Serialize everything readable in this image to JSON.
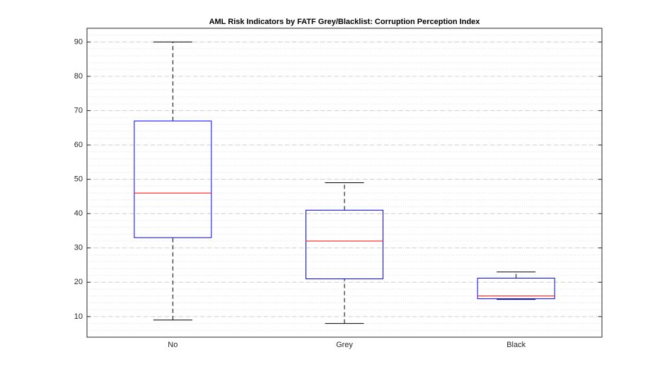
{
  "chart_data": {
    "type": "box",
    "title": "AML Risk Indicators by FATF Grey/Blacklist: Corruption Perception Index",
    "categories": [
      "No",
      "Grey",
      "Black"
    ],
    "boxes": [
      {
        "whislo": 9,
        "q1": 33,
        "med": 46,
        "q3": 67,
        "whishi": 90
      },
      {
        "whislo": 8,
        "q1": 21,
        "med": 32,
        "q3": 41,
        "whishi": 49
      },
      {
        "whislo": 15,
        "q1": 15.2,
        "med": 16,
        "q3": 21.2,
        "whishi": 23
      }
    ],
    "box_color": "#0000ff",
    "median_color": "#ff0000",
    "whisker_color": "#000000",
    "ylim": [
      4,
      94
    ],
    "yticks": [
      10,
      20,
      30,
      40,
      50,
      60,
      70,
      80,
      90
    ],
    "grid": true,
    "minor_grid": true
  }
}
